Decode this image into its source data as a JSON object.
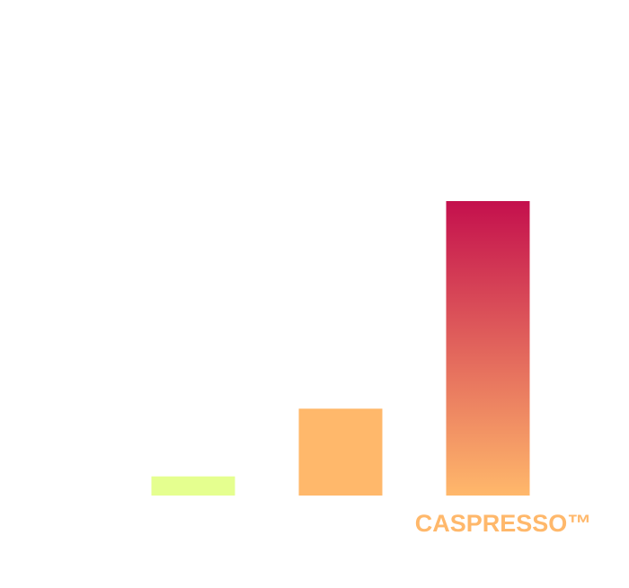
{
  "chart_data": {
    "type": "bar",
    "categories": [
      "",
      "",
      "CASPRESSO™"
    ],
    "values": [
      6.5,
      29.5,
      100
    ],
    "ylim": [
      0,
      100
    ],
    "grid": false,
    "legend": "none",
    "title": "",
    "xlabel": "",
    "ylabel": "",
    "colors": {
      "bar_1": "#e5ff8f",
      "bar_2": "#ffb86b",
      "bar_3_top": "#c4104d",
      "bar_3_bottom": "#ffb86b",
      "label": "#ffb86b"
    }
  }
}
